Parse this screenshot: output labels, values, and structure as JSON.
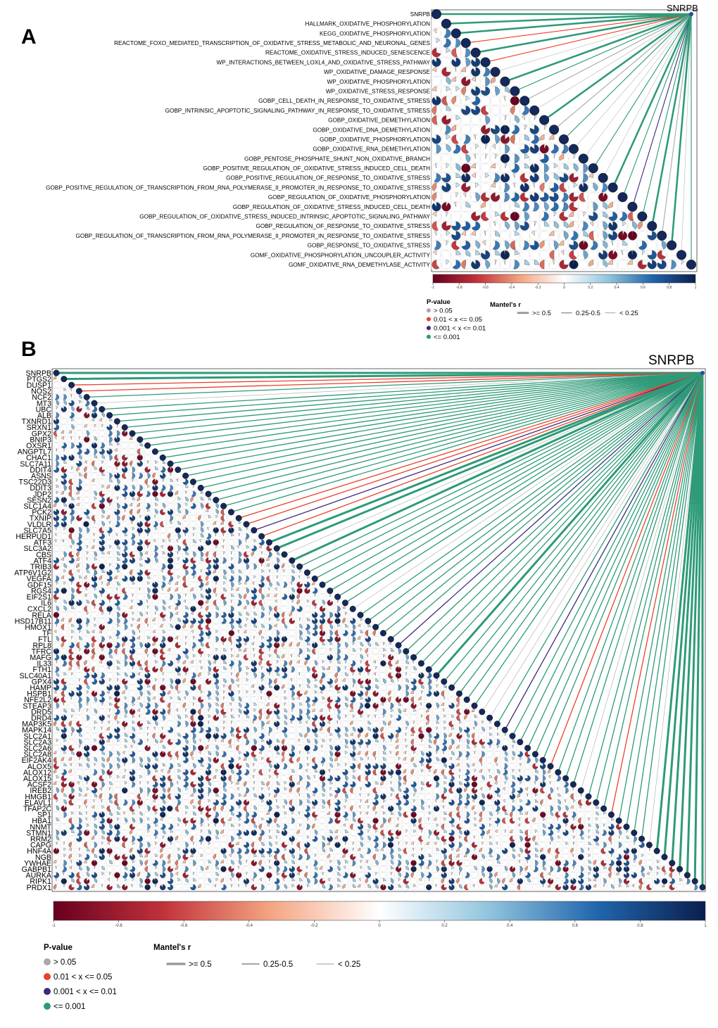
{
  "chart_data": [
    {
      "panel": "A",
      "type": "heatmap",
      "subtype": "mantel-test correlation heatmap (lower triangle, pie glyphs)",
      "target": "SNRPB",
      "variables": [
        "SNRPB",
        "HALLMARK_OXIDATIVE_PHOSPHORYLATION",
        "KEGG_OXIDATIVE_PHOSPHORYLATION",
        "REACTOME_FOXO_MEDIATED_TRANSCRIPTION_OF_OXIDATIVE_STRESS_METABOLIC_AND_NEURONAL_GENES",
        "REACTOME_OXIDATIVE_STRESS_INDUCED_SENESCENCE",
        "WP_INTERACTIONS_BETWEEN_LOXL4_AND_OXIDATIVE_STRESS_PATHWAY",
        "WP_OXIDATIVE_DAMAGE_RESPONSE",
        "WP_OXIDATIVE_PHOSPHORYLATION",
        "WP_OXIDATIVE_STRESS_RESPONSE",
        "GOBP_CELL_DEATH_IN_RESPONSE_TO_OXIDATIVE_STRESS",
        "GOBP_INTRINSIC_APOPTOTIC_SIGNALING_PATHWAY_IN_RESPONSE_TO_OXIDATIVE_STRESS",
        "GOBP_OXIDATIVE_DEMETHYLATION",
        "GOBP_OXIDATIVE_DNA_DEMETHYLATION",
        "GOBP_OXIDATIVE_PHOSPHORYLATION",
        "GOBP_OXIDATIVE_RNA_DEMETHYLATION",
        "GOBP_PENTOSE_PHOSPHATE_SHUNT_NON_OXIDATIVE_BRANCH",
        "GOBP_POSITIVE_REGULATION_OF_OXIDATIVE_STRESS_INDUCED_CELL_DEATH",
        "GOBP_POSITIVE_REGULATION_OF_RESPONSE_TO_OXIDATIVE_STRESS",
        "GOBP_POSITIVE_REGULATION_OF_TRANSCRIPTION_FROM_RNA_POLYMERASE_II_PROMOTER_IN_RESPONSE_TO_OXIDATIVE_STRESS",
        "GOBP_REGULATION_OF_OXIDATIVE_PHOSPHORYLATION",
        "GOBP_REGULATION_OF_OXIDATIVE_STRESS_INDUCED_CELL_DEATH",
        "GOBP_REGULATION_OF_OXIDATIVE_STRESS_INDUCED_INTRINSIC_APOPTOTIC_SIGNALING_PATHWAY",
        "GOBP_REGULATION_OF_RESPONSE_TO_OXIDATIVE_STRESS",
        "GOBP_REGULATION_OF_TRANSCRIPTION_FROM_RNA_POLYMERASE_II_PROMOTER_IN_RESPONSE_TO_OXIDATIVE_STRESS",
        "GOBP_RESPONSE_TO_OXIDATIVE_STRESS",
        "GOMF_OXIDATIVE_PHOSPHORYLATION_UNCOUPLER_ACTIVITY",
        "GOMF_OXIDATIVE_RNA_DEMETHYLASE_ACTIVITY"
      ],
      "link_pvalue_class": [
        "le0001",
        "le0001",
        "le0001",
        "p001_005",
        "le0001",
        "p001_005",
        "gt005",
        "le0001",
        "le0001",
        "gt005",
        "gt005",
        "le0001",
        "gt005",
        "le0001",
        "gt005",
        "gt005",
        "le0001",
        "gt005",
        "le0001",
        "le0001",
        "p0001_001",
        "le0001",
        "le0001",
        "gt005",
        "le0001",
        "gt005",
        "le0001"
      ],
      "link_r_class": [
        "ge05",
        "ge05",
        "ge05",
        "mid",
        "ge05",
        "mid",
        "lt025",
        "ge05",
        "mid",
        "mid",
        "lt025",
        "ge05",
        "mid",
        "mid",
        "lt025",
        "lt025",
        "mid",
        "lt025",
        "ge05",
        "mid",
        "mid",
        "mid",
        "ge05",
        "mid",
        "ge05",
        "lt025",
        "mid"
      ],
      "colorbar_ticks": [
        "-1",
        "-0.8",
        "-0.6",
        "-0.4",
        "-0.2",
        "0",
        "0.2",
        "0.4",
        "0.6",
        "0.8",
        "1"
      ],
      "colorbar_range": [
        -1,
        1
      ]
    },
    {
      "panel": "B",
      "type": "heatmap",
      "subtype": "mantel-test correlation heatmap (lower triangle, pie glyphs)",
      "target": "SNRPB",
      "variables": [
        "SNRPB",
        "PTGS2",
        "DUSP1",
        "NOS2",
        "NCF2",
        "MT3",
        "UBC",
        "ALB",
        "TXNRD1",
        "SRXN1",
        "GPX2",
        "BNIP3",
        "OXSR1",
        "ANGPTL7",
        "CHAC1",
        "SLC7A11",
        "DDIT4",
        "ASNS",
        "TSC22D3",
        "DDIT3",
        "JDP2",
        "SESN2",
        "SLC1A4",
        "PCK2",
        "TXNIP",
        "VLDLR",
        "SLC7A5",
        "HERPUD1",
        "ATF3",
        "SLC3A2",
        "CBS",
        "ATF4",
        "TRIB3",
        "ATP6V1G2",
        "VEGFA",
        "GDF15",
        "RGS4",
        "EIF2S1",
        "IL6",
        "CXCL2",
        "RELA",
        "HSD17B11",
        "HMOX1",
        "TF",
        "FTL",
        "RPL8",
        "TFRC",
        "MAFG",
        "IL33",
        "FTH1",
        "SLC40A1",
        "GPX4",
        "HAMP",
        "HSPB1",
        "NFE2L2",
        "STEAP3",
        "DRD5",
        "DRD4",
        "MAP3K5",
        "MAPK14",
        "SLC2A1",
        "SLC2A3",
        "SLC2A6",
        "SLC2A8",
        "EIF2AK4",
        "ALOX5",
        "ALOX12",
        "ALOX15",
        "ACSF2",
        "IREB2",
        "HMGB1",
        "ELAVL1",
        "TFAP2C",
        "SP1",
        "HBA1",
        "NNMT",
        "STMN1",
        "RRM2",
        "CAPG",
        "HNF4A",
        "NGB",
        "YWHAE",
        "GABPB1",
        "AURKA",
        "RIPK1",
        "PRDX1"
      ],
      "link_pvalue_class": [
        "le0001",
        "le0001",
        "p001_005",
        "p001_005",
        "le0001",
        "gt005",
        "le0001",
        "le0001",
        "le0001",
        "le0001",
        "le0001",
        "le0001",
        "le0001",
        "le0001",
        "le0001",
        "le0001",
        "le0001",
        "le0001",
        "le0001",
        "le0001",
        "le0001",
        "le0001",
        "le0001",
        "le0001",
        "p001_005",
        "p001_005",
        "p0001_001",
        "p001_005",
        "le0001",
        "le0001",
        "gt005",
        "le0001",
        "le0001",
        "le0001",
        "le0001",
        "le0001",
        "le0001",
        "le0001",
        "le0001",
        "gt005",
        "le0001",
        "le0001",
        "le0001",
        "le0001",
        "le0001",
        "p0001_001",
        "le0001",
        "le0001",
        "le0001",
        "le0001",
        "le0001",
        "le0001",
        "le0001",
        "le0001",
        "le0001",
        "le0001",
        "gt005",
        "gt005",
        "le0001",
        "p0001_001",
        "le0001",
        "le0001",
        "le0001",
        "le0001",
        "le0001",
        "p001_005",
        "le0001",
        "le0001",
        "le0001",
        "gt005",
        "le0001",
        "le0001",
        "le0001",
        "p001_005",
        "le0001",
        "le0001",
        "le0001",
        "le0001",
        "gt005",
        "le0001",
        "le0001",
        "le0001",
        "le0001",
        "le0001",
        "le0001",
        "le0001"
      ],
      "link_r_class": [
        "ge05",
        "ge05",
        "mid",
        "mid",
        "mid",
        "lt025",
        "mid",
        "mid",
        "mid",
        "mid",
        "mid",
        "mid",
        "mid",
        "mid",
        "mid",
        "mid",
        "mid",
        "mid",
        "mid",
        "mid",
        "mid",
        "mid",
        "mid",
        "mid",
        "mid",
        "mid",
        "mid",
        "mid",
        "ge05",
        "ge05",
        "lt025",
        "ge05",
        "mid",
        "mid",
        "mid",
        "mid",
        "mid",
        "mid",
        "mid",
        "lt025",
        "mid",
        "mid",
        "mid",
        "mid",
        "mid",
        "mid",
        "mid",
        "mid",
        "mid",
        "mid",
        "ge05",
        "mid",
        "mid",
        "mid",
        "mid",
        "mid",
        "lt025",
        "lt025",
        "mid",
        "mid",
        "mid",
        "mid",
        "mid",
        "mid",
        "mid",
        "mid",
        "mid",
        "mid",
        "mid",
        "lt025",
        "mid",
        "mid",
        "mid",
        "mid",
        "mid",
        "mid",
        "mid",
        "mid",
        "lt025",
        "ge05",
        "ge05",
        "ge05",
        "ge05",
        "ge05",
        "ge05",
        "ge05"
      ],
      "colorbar_ticks": [
        "-1",
        "-0.8",
        "-0.6",
        "-0.4",
        "-0.2",
        "0",
        "0.2",
        "0.4",
        "0.6",
        "0.8",
        "1"
      ],
      "colorbar_range": [
        -1,
        1
      ]
    }
  ],
  "legend": {
    "pvalue_title": "P-value",
    "pvalue_items": [
      {
        "key": "gt005",
        "label": "> 0.05",
        "color": "#a9a9a9"
      },
      {
        "key": "p001_005",
        "label": "0.01 < x <= 0.05",
        "color": "#e8412c"
      },
      {
        "key": "p0001_001",
        "label": "0.001 < x <= 0.01",
        "color": "#3d2a7a"
      },
      {
        "key": "le0001",
        "label": "<= 0.001",
        "color": "#2e9a78"
      }
    ],
    "mantel_title": "Mantel's r",
    "mantel_items": [
      {
        "key": "ge05",
        "label": ">= 0.5"
      },
      {
        "key": "mid",
        "label": "0.25-0.5"
      },
      {
        "key": "lt025",
        "label": "< 0.25"
      }
    ]
  },
  "palette": {
    "colormap": [
      "#67001f",
      "#c0313a",
      "#f4a582",
      "#ffffff",
      "#92c5de",
      "#2166ac",
      "#0b1f4e"
    ],
    "diag_fill": "#14285a"
  }
}
